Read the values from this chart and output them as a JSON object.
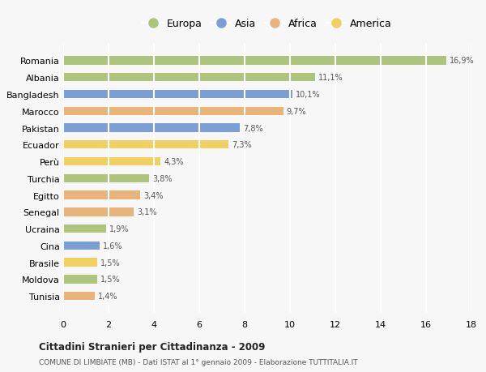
{
  "countries": [
    "Romania",
    "Albania",
    "Bangladesh",
    "Marocco",
    "Pakistan",
    "Ecuador",
    "Perù",
    "Turchia",
    "Egitto",
    "Senegal",
    "Ucraina",
    "Cina",
    "Brasile",
    "Moldova",
    "Tunisia"
  ],
  "values": [
    16.9,
    11.1,
    10.1,
    9.7,
    7.8,
    7.3,
    4.3,
    3.8,
    3.4,
    3.1,
    1.9,
    1.6,
    1.5,
    1.5,
    1.4
  ],
  "continents": [
    "Europa",
    "Europa",
    "Asia",
    "Africa",
    "Asia",
    "America",
    "America",
    "Europa",
    "Africa",
    "Africa",
    "Europa",
    "Asia",
    "America",
    "Europa",
    "Africa"
  ],
  "colors": {
    "Europa": "#adc47c",
    "Asia": "#7b9fd4",
    "Africa": "#e8b47a",
    "America": "#f0d060"
  },
  "legend_order": [
    "Europa",
    "Asia",
    "Africa",
    "America"
  ],
  "title": "Cittadini Stranieri per Cittadinanza - 2009",
  "subtitle": "COMUNE DI LIMBIATE (MB) - Dati ISTAT al 1° gennaio 2009 - Elaborazione TUTTITALIA.IT",
  "xlim": [
    0,
    18
  ],
  "xticks": [
    0,
    2,
    4,
    6,
    8,
    10,
    12,
    14,
    16,
    18
  ],
  "background_color": "#f7f7f7",
  "grid_color": "#ffffff",
  "bar_height": 0.5
}
